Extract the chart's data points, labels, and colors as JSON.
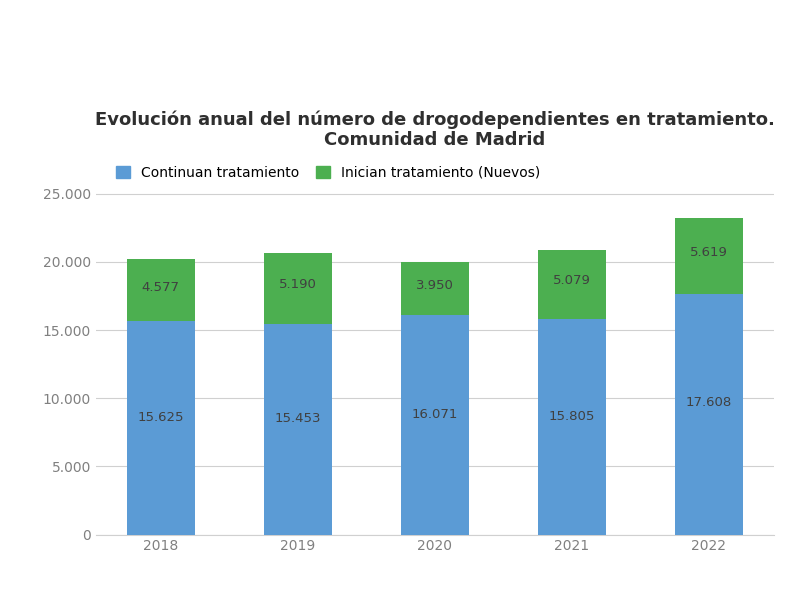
{
  "title_line1": "Evolución anual del número de drogodependientes en tratamiento.",
  "title_line2": "Comunidad de Madrid",
  "years": [
    "2018",
    "2019",
    "2020",
    "2021",
    "2022"
  ],
  "continuan": [
    15625,
    15453,
    16071,
    15805,
    17608
  ],
  "inician": [
    4577,
    5190,
    3950,
    5079,
    5619
  ],
  "continuan_labels": [
    "15.625",
    "15.453",
    "16.071",
    "15.805",
    "17.608"
  ],
  "inician_labels": [
    "4.577",
    "5.190",
    "3.950",
    "5.079",
    "5.619"
  ],
  "color_continuan": "#5B9BD5",
  "color_inician": "#4CAF50",
  "legend_continuan": "Continuan tratamiento",
  "legend_inician": "Inician tratamiento (Nuevos)",
  "ylim": [
    0,
    27000
  ],
  "yticks": [
    0,
    5000,
    10000,
    15000,
    20000,
    25000
  ],
  "ytick_labels": [
    "0",
    "5.000",
    "10.000",
    "15.000",
    "20.000",
    "25.000"
  ],
  "background_color": "#ffffff",
  "grid_color": "#d0d0d0",
  "title_fontsize": 13,
  "label_fontsize": 9.5,
  "tick_fontsize": 10,
  "legend_fontsize": 10,
  "tick_color": "#808080",
  "label_color": "#404040"
}
